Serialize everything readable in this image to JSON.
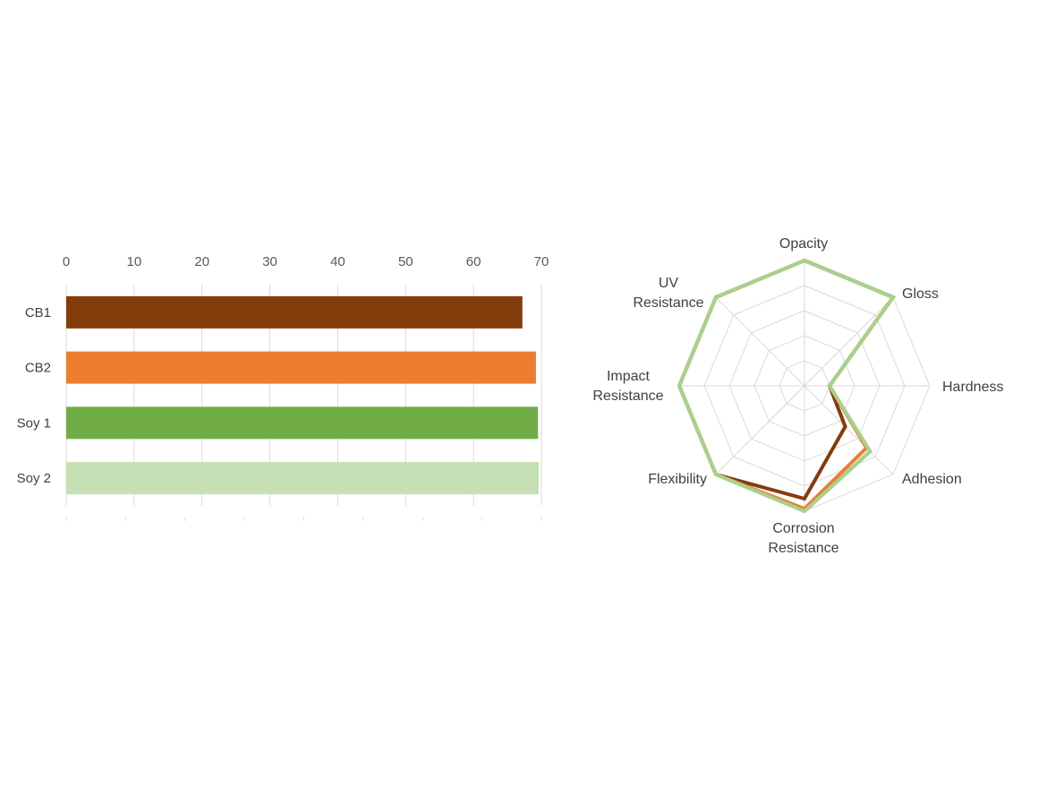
{
  "chart_data": [
    {
      "type": "bar",
      "orientation": "horizontal",
      "categories": [
        "CB1",
        "CB2",
        "Soy 1",
        "Soy 2"
      ],
      "values": [
        67.2,
        69.2,
        69.5,
        69.6
      ],
      "colors": [
        "#843C0C",
        "#ED7D31",
        "#70AD47",
        "#C5E0B4"
      ],
      "xlim": [
        0,
        70
      ],
      "xticks": [
        "0",
        "10",
        "20",
        "30",
        "40",
        "50",
        "60",
        "70"
      ],
      "xaxis_position": "top",
      "grid": true,
      "title": "",
      "xlabel": "",
      "ylabel": ""
    },
    {
      "type": "radar",
      "axes": [
        "Opacity",
        "Gloss",
        "Hardness",
        "Adhesion",
        "Corrosion Resistance",
        "Flexibility",
        "Impact Resistance",
        "UV Resistance"
      ],
      "rlim": [
        0,
        5
      ],
      "grid_rings": 5,
      "series": [
        {
          "values": [
            5,
            5,
            1,
            2.3,
            4.5,
            5,
            5,
            5
          ],
          "color": "#843C0C"
        },
        {
          "values": [
            5,
            5,
            1,
            3.5,
            4.9,
            5,
            5,
            5
          ],
          "color": "#ED7D31"
        },
        {
          "values": [
            5,
            5,
            1,
            3.7,
            5,
            5,
            5,
            5
          ],
          "color": "#70AD47"
        },
        {
          "values": [
            5,
            5,
            1,
            3.7,
            5,
            5,
            5,
            5
          ],
          "color": "#A9D18E"
        }
      ]
    }
  ]
}
